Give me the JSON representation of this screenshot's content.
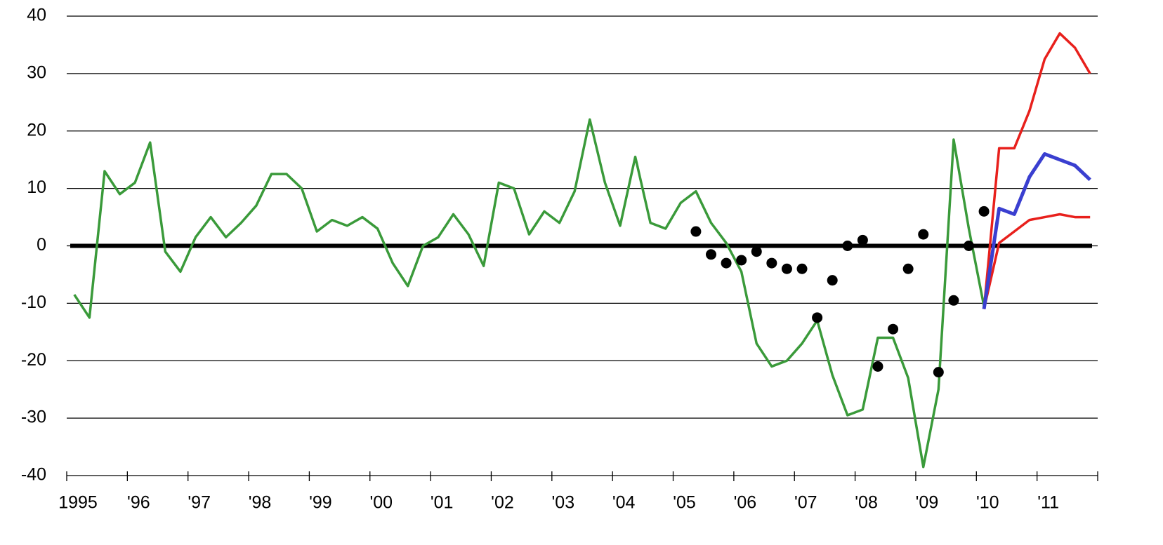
{
  "chart_data": {
    "type": "line",
    "xlim": [
      1995,
      2012
    ],
    "xticks": [
      {
        "value": 1995,
        "label": "1995"
      },
      {
        "value": 1996,
        "label": "'96"
      },
      {
        "value": 1997,
        "label": "'97"
      },
      {
        "value": 1998,
        "label": "'98"
      },
      {
        "value": 1999,
        "label": "'99"
      },
      {
        "value": 2000,
        "label": "'00"
      },
      {
        "value": 2001,
        "label": "'01"
      },
      {
        "value": 2002,
        "label": "'02"
      },
      {
        "value": 2003,
        "label": "'03"
      },
      {
        "value": 2004,
        "label": "'04"
      },
      {
        "value": 2005,
        "label": "'05"
      },
      {
        "value": 2006,
        "label": "'06"
      },
      {
        "value": 2007,
        "label": "'07"
      },
      {
        "value": 2008,
        "label": "'08"
      },
      {
        "value": 2009,
        "label": "'09"
      },
      {
        "value": 2010,
        "label": "'10"
      },
      {
        "value": 2011,
        "label": "'11"
      }
    ],
    "ylim": [
      -40,
      40
    ],
    "yticks": [
      -40,
      -30,
      -20,
      -10,
      0,
      10,
      20,
      30,
      40
    ],
    "grid": true,
    "zero_line": true,
    "series": [
      {
        "color": "#3a9a3a",
        "marker": false,
        "x": [
          1995.125,
          1995.375,
          1995.625,
          1995.875,
          1996.125,
          1996.375,
          1996.625,
          1996.875,
          1997.125,
          1997.375,
          1997.625,
          1997.875,
          1998.125,
          1998.375,
          1998.625,
          1998.875,
          1999.125,
          1999.375,
          1999.625,
          1999.875,
          2000.125,
          2000.375,
          2000.625,
          2000.875,
          2001.125,
          2001.375,
          2001.625,
          2001.875,
          2002.125,
          2002.375,
          2002.625,
          2002.875,
          2003.125,
          2003.375,
          2003.625,
          2003.875,
          2004.125,
          2004.375,
          2004.625,
          2004.875,
          2005.125,
          2005.375,
          2005.625,
          2005.875,
          2006.125,
          2006.375,
          2006.625,
          2006.875,
          2007.125,
          2007.375,
          2007.625,
          2007.875,
          2008.125,
          2008.375,
          2008.625,
          2008.875,
          2009.125,
          2009.375,
          2009.625,
          2009.875,
          2010.125
        ],
        "values": [
          -8.5,
          -12.5,
          13,
          9,
          11,
          18,
          -1,
          -4.5,
          1.5,
          5,
          1.5,
          4,
          7,
          12.5,
          12.5,
          10,
          2.5,
          4.5,
          3.5,
          5,
          3,
          -3,
          -7,
          0,
          1.5,
          5.5,
          2,
          -3.5,
          11,
          10,
          2,
          6,
          4,
          9.5,
          22,
          11,
          3.5,
          15.5,
          4,
          3,
          7.5,
          9.5,
          4,
          0.5,
          -4.5,
          -17,
          -21,
          -20,
          -17,
          -13,
          -22.5,
          -29.5,
          -28.5,
          -16,
          -16,
          -23,
          -38.5,
          -25,
          18.5,
          3,
          -10.5
        ]
      },
      {
        "color": "#000000",
        "marker": true,
        "x": [
          2005.375,
          2005.625,
          2005.875,
          2006.125,
          2006.375,
          2006.625,
          2006.875,
          2007.125,
          2007.375,
          2007.625,
          2007.875,
          2008.125,
          2008.375,
          2008.625,
          2008.875,
          2009.125,
          2009.375,
          2009.625,
          2009.875,
          2010.125
        ],
        "values": [
          2.5,
          -1.5,
          -3,
          -2.5,
          -1,
          -3,
          -4,
          -4,
          -12.5,
          -6,
          0,
          1,
          -21,
          -14.5,
          -4,
          2,
          -22,
          -9.5,
          0,
          6
        ]
      },
      {
        "color": "#e8201c",
        "marker": false,
        "x": [
          2010.125,
          2010.375,
          2010.625,
          2010.875,
          2011.125,
          2011.375,
          2011.625,
          2011.875
        ],
        "values": [
          -11,
          17,
          17,
          23.5,
          32.5,
          37,
          34.5,
          30
        ]
      },
      {
        "color": "#e8201c",
        "marker": false,
        "x": [
          2010.125,
          2010.375,
          2010.625,
          2010.875,
          2011.125,
          2011.375,
          2011.625,
          2011.875
        ],
        "values": [
          -11,
          0.5,
          2.5,
          4.5,
          5,
          5.5,
          5,
          5
        ]
      },
      {
        "color": "#3a3fd0",
        "marker": false,
        "width": 5,
        "x": [
          2010.125,
          2010.375,
          2010.625,
          2010.875,
          2011.125,
          2011.375,
          2011.625,
          2011.875
        ],
        "values": [
          -11,
          6.5,
          5.5,
          12,
          16,
          15,
          14,
          11.5
        ]
      }
    ]
  }
}
